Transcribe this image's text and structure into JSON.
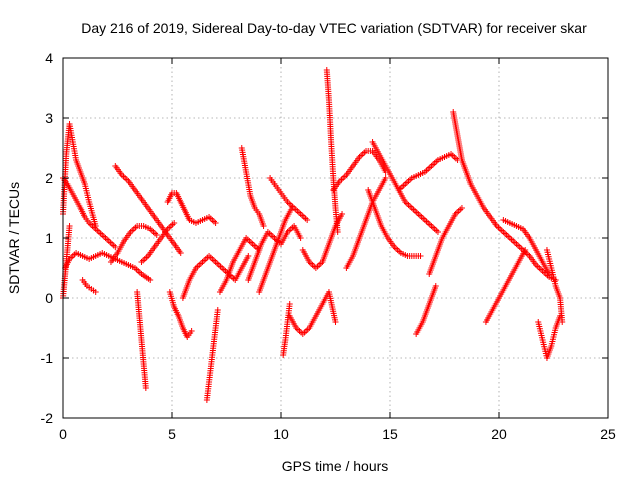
{
  "chart_data": {
    "type": "scatter",
    "title": "Day 216 of 2019, Sidereal Day-to-day VTEC variation (SDTVAR) for receiver skar",
    "xlabel": "GPS time / hours",
    "ylabel": "SDTVAR / TECUs",
    "xlim": [
      0,
      25
    ],
    "ylim": [
      -2,
      4
    ],
    "x_ticks": [
      "0",
      "5",
      "10",
      "15",
      "20",
      "25"
    ],
    "y_ticks": [
      "-2",
      "-1",
      "0",
      "1",
      "2",
      "3",
      "4"
    ],
    "grid": true,
    "marker": "+",
    "color": "#ff0000",
    "tracks": [
      {
        "name": "track-a",
        "x": [
          0.0,
          0.15,
          0.3,
          0.45,
          0.6,
          0.8,
          1.0,
          1.2,
          1.5
        ],
        "y": [
          1.4,
          2.4,
          2.9,
          2.6,
          2.3,
          2.1,
          1.9,
          1.6,
          1.2
        ]
      },
      {
        "name": "track-b",
        "x": [
          0.0,
          0.2,
          0.5,
          0.8,
          1.0,
          1.2,
          1.5,
          1.8,
          2.1,
          2.4
        ],
        "y": [
          2.0,
          1.9,
          1.7,
          1.5,
          1.35,
          1.25,
          1.15,
          1.05,
          0.95,
          0.85
        ]
      },
      {
        "name": "track-c",
        "x": [
          0.1,
          0.3,
          0.6,
          0.9,
          1.2,
          1.5,
          1.8,
          2.1,
          2.4,
          2.7,
          3.0,
          3.3,
          3.6,
          4.0
        ],
        "y": [
          0.5,
          0.65,
          0.75,
          0.7,
          0.65,
          0.7,
          0.75,
          0.7,
          0.65,
          0.6,
          0.55,
          0.5,
          0.4,
          0.3
        ]
      },
      {
        "name": "track-d",
        "x": [
          0.0,
          0.1,
          0.2,
          0.3
        ],
        "y": [
          0.0,
          0.4,
          0.8,
          1.2
        ]
      },
      {
        "name": "track-e",
        "x": [
          0.9,
          1.1,
          1.3,
          1.5
        ],
        "y": [
          0.3,
          0.2,
          0.15,
          0.1
        ]
      },
      {
        "name": "track-f",
        "x": [
          2.4,
          2.7,
          3.0,
          3.3,
          3.6,
          3.9,
          4.2,
          4.5,
          4.8,
          5.1,
          5.4
        ],
        "y": [
          2.2,
          2.05,
          1.95,
          1.8,
          1.65,
          1.5,
          1.35,
          1.2,
          1.05,
          0.9,
          0.75
        ]
      },
      {
        "name": "track-g",
        "x": [
          2.2,
          2.5,
          2.8,
          3.1,
          3.4,
          3.7,
          4.0,
          4.3
        ],
        "y": [
          0.6,
          0.75,
          0.95,
          1.1,
          1.2,
          1.2,
          1.15,
          1.05
        ]
      },
      {
        "name": "track-h",
        "x": [
          3.4,
          3.5,
          3.6,
          3.7,
          3.8
        ],
        "y": [
          0.1,
          -0.3,
          -0.7,
          -1.1,
          -1.5
        ]
      },
      {
        "name": "track-i",
        "x": [
          3.6,
          3.9,
          4.2,
          4.5,
          4.8,
          5.1
        ],
        "y": [
          0.6,
          0.7,
          0.85,
          1.0,
          1.15,
          1.25
        ]
      },
      {
        "name": "track-j",
        "x": [
          4.8,
          5.0,
          5.2,
          5.4,
          5.6,
          5.8,
          6.1,
          6.4,
          6.7,
          7.0
        ],
        "y": [
          1.6,
          1.75,
          1.75,
          1.6,
          1.45,
          1.3,
          1.25,
          1.3,
          1.35,
          1.25
        ]
      },
      {
        "name": "track-k",
        "x": [
          4.9,
          5.1,
          5.3,
          5.5,
          5.7,
          5.9
        ],
        "y": [
          0.1,
          -0.15,
          -0.3,
          -0.5,
          -0.65,
          -0.55
        ]
      },
      {
        "name": "track-l",
        "x": [
          5.5,
          5.8,
          6.1,
          6.4,
          6.7,
          7.0,
          7.3,
          7.6,
          7.9,
          8.2,
          8.5
        ],
        "y": [
          0.0,
          0.3,
          0.5,
          0.6,
          0.7,
          0.6,
          0.5,
          0.4,
          0.3,
          0.5,
          0.7
        ]
      },
      {
        "name": "track-m",
        "x": [
          6.6,
          6.7,
          6.8,
          6.9,
          7.0,
          7.1
        ],
        "y": [
          -1.7,
          -1.4,
          -1.1,
          -0.8,
          -0.5,
          -0.2
        ]
      },
      {
        "name": "track-n",
        "x": [
          7.2,
          7.5,
          7.8,
          8.1,
          8.4,
          8.7,
          9.0
        ],
        "y": [
          0.1,
          0.3,
          0.6,
          0.8,
          1.0,
          0.9,
          0.8
        ]
      },
      {
        "name": "track-o",
        "x": [
          8.2,
          8.4,
          8.6,
          8.8,
          9.0,
          9.2
        ],
        "y": [
          2.5,
          2.1,
          1.7,
          1.5,
          1.4,
          1.2
        ]
      },
      {
        "name": "track-p",
        "x": [
          8.5,
          8.8,
          9.1,
          9.4,
          9.7,
          10.0,
          10.3,
          10.6,
          10.9
        ],
        "y": [
          0.3,
          0.6,
          0.9,
          1.1,
          1.0,
          0.9,
          1.1,
          1.2,
          1.0
        ]
      },
      {
        "name": "track-q",
        "x": [
          9.0,
          9.3,
          9.6,
          9.9,
          10.2,
          10.5
        ],
        "y": [
          0.1,
          0.4,
          0.7,
          1.0,
          1.3,
          1.5
        ]
      },
      {
        "name": "track-r",
        "x": [
          9.5,
          9.7,
          9.9,
          10.1,
          10.3,
          10.6,
          10.9,
          11.2
        ],
        "y": [
          2.0,
          1.9,
          1.8,
          1.7,
          1.6,
          1.5,
          1.4,
          1.3
        ]
      },
      {
        "name": "track-s",
        "x": [
          10.1,
          10.2,
          10.3,
          10.4
        ],
        "y": [
          -0.95,
          -0.7,
          -0.4,
          -0.1
        ]
      },
      {
        "name": "track-t",
        "x": [
          10.4,
          10.7,
          11.0,
          11.3,
          11.6,
          11.9,
          12.2,
          12.5
        ],
        "y": [
          -0.3,
          -0.5,
          -0.6,
          -0.5,
          -0.3,
          -0.1,
          0.1,
          -0.4
        ]
      },
      {
        "name": "track-u",
        "x": [
          11.0,
          11.3,
          11.6,
          11.9,
          12.2,
          12.5,
          12.8
        ],
        "y": [
          0.8,
          0.6,
          0.5,
          0.6,
          0.9,
          1.2,
          1.4
        ]
      },
      {
        "name": "track-v",
        "x": [
          12.1,
          12.2,
          12.3,
          12.4,
          12.5,
          12.6
        ],
        "y": [
          3.8,
          3.3,
          2.6,
          2.0,
          1.5,
          1.1
        ]
      },
      {
        "name": "track-w",
        "x": [
          12.4,
          12.7,
          13.0,
          13.3,
          13.6,
          13.9,
          14.2,
          14.5,
          14.8
        ],
        "y": [
          1.8,
          1.95,
          2.05,
          2.2,
          2.35,
          2.45,
          2.45,
          2.3,
          2.1
        ]
      },
      {
        "name": "track-x",
        "x": [
          13.0,
          13.3,
          13.6,
          13.9,
          14.2,
          14.5,
          14.8
        ],
        "y": [
          0.5,
          0.7,
          1.0,
          1.3,
          1.6,
          1.8,
          2.0
        ]
      },
      {
        "name": "track-y",
        "x": [
          14.0,
          14.3,
          14.6,
          14.9,
          15.2,
          15.5,
          15.8,
          16.1,
          16.4
        ],
        "y": [
          1.8,
          1.5,
          1.2,
          1.0,
          0.85,
          0.75,
          0.7,
          0.7,
          0.7
        ]
      },
      {
        "name": "track-z",
        "x": [
          14.2,
          14.5,
          14.8,
          15.1,
          15.4,
          15.7,
          16.0,
          16.3,
          16.6,
          16.9,
          17.2
        ],
        "y": [
          2.6,
          2.4,
          2.2,
          2.0,
          1.8,
          1.6,
          1.5,
          1.4,
          1.3,
          1.2,
          1.1
        ]
      },
      {
        "name": "track-aa",
        "x": [
          15.4,
          15.7,
          16.0,
          16.3,
          16.6,
          16.9,
          17.2,
          17.5,
          17.8,
          18.1
        ],
        "y": [
          1.8,
          1.9,
          2.0,
          2.05,
          2.1,
          2.2,
          2.3,
          2.35,
          2.4,
          2.3
        ]
      },
      {
        "name": "track-ab",
        "x": [
          16.2,
          16.5,
          16.8,
          17.1
        ],
        "y": [
          -0.6,
          -0.4,
          -0.1,
          0.2
        ]
      },
      {
        "name": "track-ac",
        "x": [
          16.8,
          17.1,
          17.4,
          17.7,
          18.0,
          18.3
        ],
        "y": [
          0.4,
          0.7,
          1.0,
          1.2,
          1.4,
          1.5
        ]
      },
      {
        "name": "track-ad",
        "x": [
          17.9,
          18.0,
          18.1,
          18.2,
          18.3,
          18.5,
          18.7
        ],
        "y": [
          3.1,
          2.9,
          2.7,
          2.5,
          2.3,
          2.1,
          1.9
        ]
      },
      {
        "name": "track-ae",
        "x": [
          18.4,
          18.7,
          19.0,
          19.3,
          19.6,
          19.9,
          20.2,
          20.5,
          20.8,
          21.1,
          21.4,
          21.7,
          22.0,
          22.3,
          22.6
        ],
        "y": [
          2.2,
          1.9,
          1.7,
          1.5,
          1.35,
          1.2,
          1.1,
          1.0,
          0.9,
          0.8,
          0.7,
          0.55,
          0.45,
          0.35,
          0.3
        ]
      },
      {
        "name": "track-af",
        "x": [
          19.4,
          19.7,
          20.0,
          20.3,
          20.6,
          20.9,
          21.2
        ],
        "y": [
          -0.4,
          -0.2,
          0.0,
          0.2,
          0.4,
          0.6,
          0.8
        ]
      },
      {
        "name": "track-ag",
        "x": [
          20.2,
          20.5,
          20.8,
          21.1,
          21.4,
          21.7,
          22.0,
          22.3
        ],
        "y": [
          1.3,
          1.25,
          1.2,
          1.15,
          1.0,
          0.8,
          0.6,
          0.4
        ]
      },
      {
        "name": "track-ah",
        "x": [
          21.8,
          22.0,
          22.2,
          22.4,
          22.6,
          22.8
        ],
        "y": [
          -0.4,
          -0.7,
          -1.0,
          -0.8,
          -0.5,
          -0.3
        ]
      },
      {
        "name": "track-ai",
        "x": [
          22.2,
          22.4,
          22.6,
          22.8,
          22.9
        ],
        "y": [
          0.8,
          0.5,
          0.2,
          0.0,
          -0.4
        ]
      }
    ]
  }
}
